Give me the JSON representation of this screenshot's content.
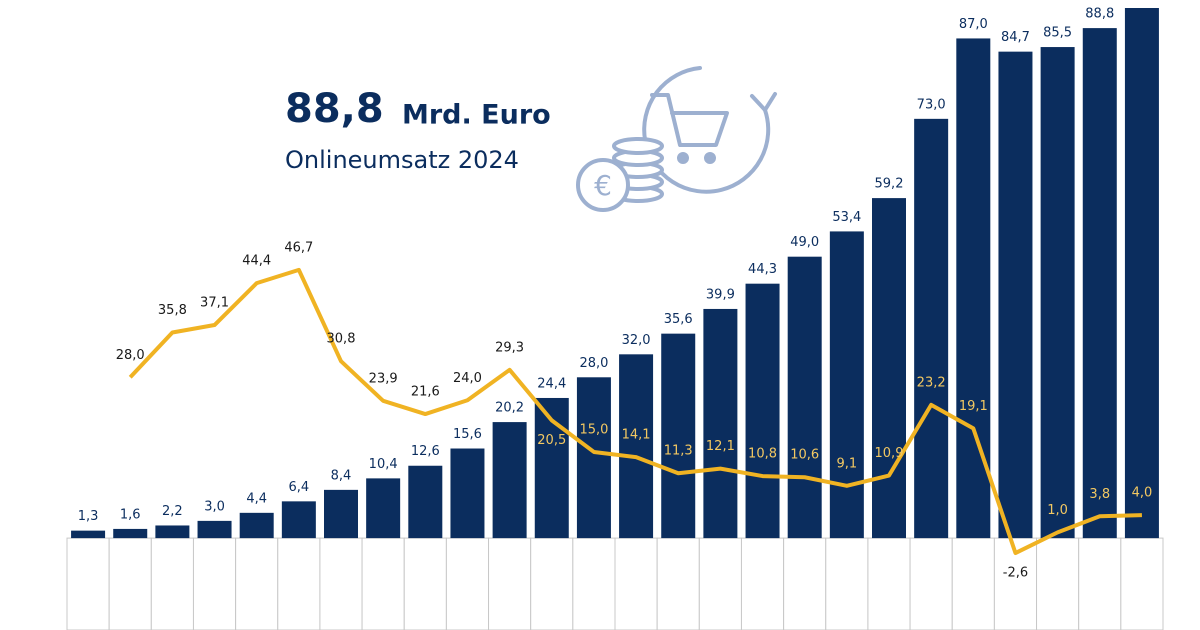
{
  "chart_data": {
    "type": "bar-line",
    "headline_value": "88,8",
    "headline_unit": "Mrd. Euro",
    "subtitle": "Onlineumsatz 2024",
    "categories": [
      null,
      null,
      null,
      null,
      null,
      null,
      null,
      null,
      null,
      null,
      null,
      null,
      null,
      null,
      null,
      null,
      null,
      null,
      null,
      null,
      null,
      null,
      null,
      null,
      null,
      null
    ],
    "series": [
      {
        "type": "bar",
        "color": "#0b2d5e",
        "values": [
          1.3,
          1.6,
          2.2,
          3.0,
          4.4,
          6.4,
          8.4,
          10.4,
          12.6,
          15.6,
          20.2,
          24.4,
          28.0,
          32.0,
          35.6,
          39.9,
          44.3,
          49.0,
          53.4,
          59.2,
          73.0,
          87.0,
          84.7,
          85.5,
          88.8,
          92.3
        ],
        "value_labels": [
          "1,3",
          "1,6",
          "2,2",
          "3,0",
          "4,4",
          "6,4",
          "8,4",
          "10,4",
          "12,6",
          "15,6",
          "20,2",
          "24,4",
          "28,0",
          "32,0",
          "35,6",
          "39,9",
          "44,3",
          "49,0",
          "53,4",
          "59,2",
          "73,0",
          "87,0",
          "84,7",
          "85,5",
          "88,8",
          null
        ]
      },
      {
        "type": "line",
        "color": "#f0b323",
        "values": [
          null,
          28.0,
          35.8,
          37.1,
          44.4,
          46.7,
          30.8,
          23.9,
          21.6,
          24.0,
          29.3,
          20.5,
          15.0,
          14.1,
          11.3,
          12.1,
          10.8,
          10.6,
          9.1,
          10.9,
          23.2,
          19.1,
          -2.6,
          1.0,
          3.8,
          4.0
        ],
        "value_labels": [
          null,
          "28,0",
          "35,8",
          "37,1",
          "44,4",
          "46,7",
          "30,8",
          "23,9",
          "21,6",
          "24,0",
          "29,3",
          "20,5",
          "15,0",
          "14,1",
          "11,3",
          "12,1",
          "10,8",
          "10,6",
          "9,1",
          "10,9",
          "23,2",
          "19,1",
          "-2,6",
          "1,0",
          "3,8",
          "4,0"
        ]
      }
    ],
    "ylim": [
      -16,
      92.3
    ]
  }
}
